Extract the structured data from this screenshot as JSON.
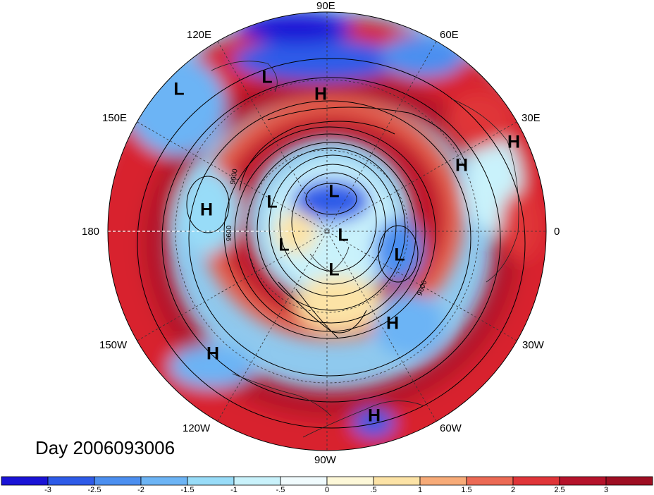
{
  "title": "Day 2006093006",
  "map": {
    "projection": "polar-stereographic-north",
    "longitude_labels": [
      {
        "text": "90E"
      },
      {
        "text": "120E"
      },
      {
        "text": "60E"
      },
      {
        "text": "150E"
      },
      {
        "text": "30E"
      },
      {
        "text": "180"
      },
      {
        "text": "0"
      },
      {
        "text": "150W"
      },
      {
        "text": "30W"
      },
      {
        "text": "120W"
      },
      {
        "text": "60W"
      },
      {
        "text": "90W"
      }
    ],
    "contour_labels": [
      {
        "text": "9600"
      },
      {
        "text": "9600"
      },
      {
        "text": "9600"
      }
    ],
    "pressure_centers": [
      {
        "text": "L"
      },
      {
        "text": "L"
      },
      {
        "text": "H"
      },
      {
        "text": "H"
      },
      {
        "text": "H"
      },
      {
        "text": "H"
      },
      {
        "text": "L"
      },
      {
        "text": "L"
      },
      {
        "text": "L"
      },
      {
        "text": "L"
      },
      {
        "text": "L"
      },
      {
        "text": "L"
      },
      {
        "text": "H"
      },
      {
        "text": "H"
      },
      {
        "text": "H"
      }
    ]
  },
  "colorbar": {
    "tick_labels": [
      "-3",
      "-2.5",
      "-2",
      "-1.5",
      "-1",
      "-.5",
      "0",
      ".5",
      "1",
      "1.5",
      "2",
      "2.5",
      "3"
    ],
    "colors": [
      "#1a13d6",
      "#2e5be8",
      "#4c8ff0",
      "#6cb4f5",
      "#98dcf8",
      "#c9f2fb",
      "#f0fbfd",
      "#fdf8d8",
      "#fce3a6",
      "#f7ab78",
      "#ec6a55",
      "#e03539",
      "#b5132b",
      "#9e0e22"
    ]
  }
}
